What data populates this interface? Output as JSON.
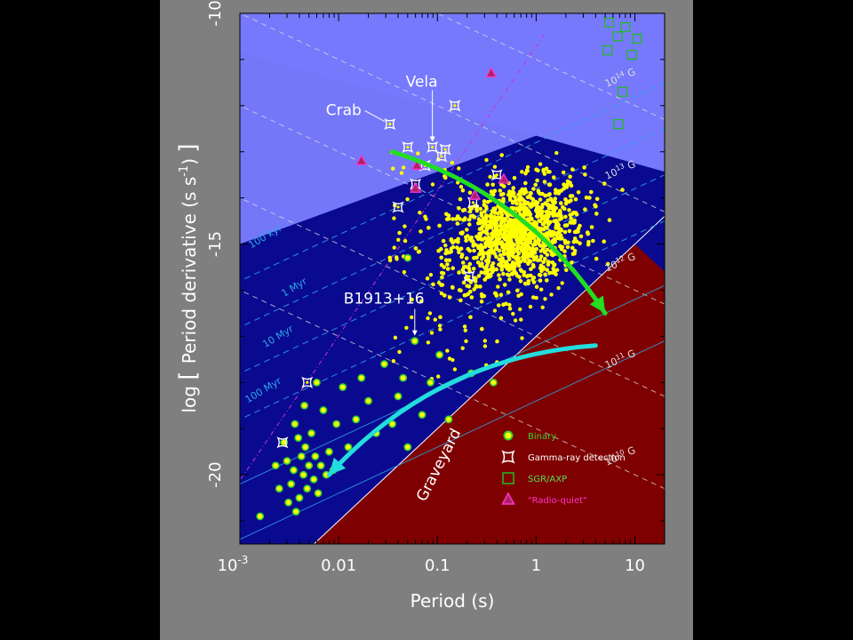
{
  "chart_data": {
    "type": "scatter",
    "title": "",
    "xlabel": "Period (s)",
    "ylabel_parts": [
      "log",
      "[",
      "Period derivative (s s",
      "-1",
      ")",
      "]"
    ],
    "xscale": "log",
    "xlim": [
      0.001,
      20
    ],
    "ylim": [
      -21.5,
      -10
    ],
    "x_ticks": [
      {
        "value": 0.001,
        "label": "10",
        "sup": "-3"
      },
      {
        "value": 0.01,
        "label": "0.01"
      },
      {
        "value": 0.1,
        "label": "0.1"
      },
      {
        "value": 1,
        "label": "1"
      },
      {
        "value": 10,
        "label": "10"
      }
    ],
    "y_ticks": [
      {
        "value": -10,
        "label": "-10"
      },
      {
        "value": -15,
        "label": "-15"
      },
      {
        "value": -20,
        "label": "-20"
      }
    ],
    "colors": {
      "background": "#7f7f7f",
      "plot_area": "#7f0000",
      "region_light": "#7a7dfe",
      "region_mid": "#3333d8",
      "region_dark": "#0a0a90",
      "graveyard_line": "#ffffff",
      "pulsar": "#ffff00",
      "binary": "#33cc33",
      "gamma": "#ffffff",
      "sgr_axp": "#22bb22",
      "radio_quiet": "#ff33cc",
      "age_lines": "#2ea8e8",
      "b_lines": "#dddddd",
      "arrow_green": "#22dd22",
      "arrow_cyan": "#22dddd"
    },
    "age_lines": [
      {
        "label": "100 kyr",
        "log_age_yr": 5
      },
      {
        "label": "1 Myr",
        "log_age_yr": 6
      },
      {
        "label": "10 Myr",
        "log_age_yr": 7
      },
      {
        "label": "100 Myr",
        "log_age_yr": 8
      }
    ],
    "field_lines": [
      {
        "base": "10",
        "exp": "14",
        "unit": "G",
        "log_b": 14
      },
      {
        "base": "10",
        "exp": "13",
        "unit": "G",
        "log_b": 13
      },
      {
        "base": "10",
        "exp": "12",
        "unit": "G",
        "log_b": 12
      },
      {
        "base": "10",
        "exp": "11",
        "unit": "G",
        "log_b": 11
      },
      {
        "base": "10",
        "exp": "10",
        "unit": "G",
        "log_b": 10
      }
    ],
    "graveyard_label": "Graveyard",
    "annotations": [
      {
        "text": "Crab",
        "x": 0.033,
        "y": -12.4
      },
      {
        "text": "Vela",
        "x": 0.089,
        "y": -12.9
      },
      {
        "text": "B1913+16",
        "x": 0.059,
        "y": -17.1
      }
    ],
    "legend": [
      {
        "symbol": "binary",
        "label": "Binary"
      },
      {
        "symbol": "gamma",
        "label": "Gamma-ray detection"
      },
      {
        "symbol": "sgr",
        "label": "SGR/AXP"
      },
      {
        "symbol": "rq",
        "label": "\"Radio-quiet\""
      }
    ],
    "series": [
      {
        "name": "Binary",
        "points": [
          [
            0.0016,
            -20.9
          ],
          [
            0.0023,
            -19.8
          ],
          [
            0.0025,
            -20.3
          ],
          [
            0.0028,
            -19.3
          ],
          [
            0.003,
            -19.7
          ],
          [
            0.0031,
            -20.6
          ],
          [
            0.0033,
            -20.2
          ],
          [
            0.0035,
            -19.9
          ],
          [
            0.0036,
            -18.9
          ],
          [
            0.0037,
            -20.8
          ],
          [
            0.0039,
            -19.2
          ],
          [
            0.004,
            -20.5
          ],
          [
            0.0042,
            -19.6
          ],
          [
            0.0044,
            -20.0
          ],
          [
            0.0046,
            -19.4
          ],
          [
            0.0048,
            -20.3
          ],
          [
            0.005,
            -19.8
          ],
          [
            0.0053,
            -19.1
          ],
          [
            0.0056,
            -20.1
          ],
          [
            0.0058,
            -19.6
          ],
          [
            0.0062,
            -20.4
          ],
          [
            0.0066,
            -19.8
          ],
          [
            0.007,
            -18.6
          ],
          [
            0.0075,
            -20.0
          ],
          [
            0.008,
            -19.5
          ],
          [
            0.0088,
            -19.9
          ],
          [
            0.0095,
            -18.9
          ],
          [
            0.011,
            -18.1
          ],
          [
            0.0125,
            -19.4
          ],
          [
            0.015,
            -18.8
          ],
          [
            0.017,
            -17.9
          ],
          [
            0.02,
            -18.4
          ],
          [
            0.024,
            -19.1
          ],
          [
            0.029,
            -17.6
          ],
          [
            0.035,
            -18.9
          ],
          [
            0.04,
            -18.3
          ],
          [
            0.045,
            -17.9
          ],
          [
            0.05,
            -19.4
          ],
          [
            0.059,
            -17.1
          ],
          [
            0.07,
            -18.7
          ],
          [
            0.085,
            -18.0
          ],
          [
            0.105,
            -17.4
          ],
          [
            0.13,
            -18.8
          ],
          [
            0.05,
            -15.3
          ],
          [
            0.22,
            -17.8
          ],
          [
            0.37,
            -18.0
          ],
          [
            0.006,
            -18.0
          ],
          [
            0.0045,
            -18.5
          ]
        ]
      },
      {
        "name": "Gamma-ray detection",
        "points": [
          [
            0.033,
            -12.4
          ],
          [
            0.089,
            -12.9
          ],
          [
            0.05,
            -12.9
          ],
          [
            0.06,
            -13.7
          ],
          [
            0.11,
            -13.1
          ],
          [
            0.04,
            -14.2
          ],
          [
            0.15,
            -12.0
          ],
          [
            0.0027,
            -19.3
          ],
          [
            0.0048,
            -18.0
          ],
          [
            0.23,
            -14.1
          ],
          [
            0.4,
            -13.5
          ],
          [
            0.21,
            -15.7
          ],
          [
            0.12,
            -12.95
          ],
          [
            0.075,
            -13.3
          ]
        ]
      },
      {
        "name": "SGR/AXP",
        "points": [
          [
            5.5,
            -10.2
          ],
          [
            6.7,
            -10.5
          ],
          [
            8.0,
            -10.3
          ],
          [
            10.5,
            -10.55
          ],
          [
            5.3,
            -10.8
          ],
          [
            9.3,
            -10.9
          ],
          [
            7.5,
            -11.7
          ],
          [
            6.8,
            -12.4
          ]
        ]
      },
      {
        "name": "Radio-quiet",
        "points": [
          [
            0.35,
            -11.3
          ],
          [
            0.06,
            -13.8
          ],
          [
            0.47,
            -13.6
          ],
          [
            0.24,
            -13.95
          ],
          [
            0.017,
            -13.2
          ],
          [
            0.062,
            -13.3
          ]
        ]
      }
    ],
    "arrows": [
      {
        "color": "green",
        "from": [
          0.035,
          -13.0
        ],
        "to": [
          5.0,
          -16.5
        ]
      },
      {
        "color": "cyan",
        "from": [
          4.0,
          -17.2
        ],
        "to": [
          0.008,
          -20.0
        ]
      }
    ]
  }
}
